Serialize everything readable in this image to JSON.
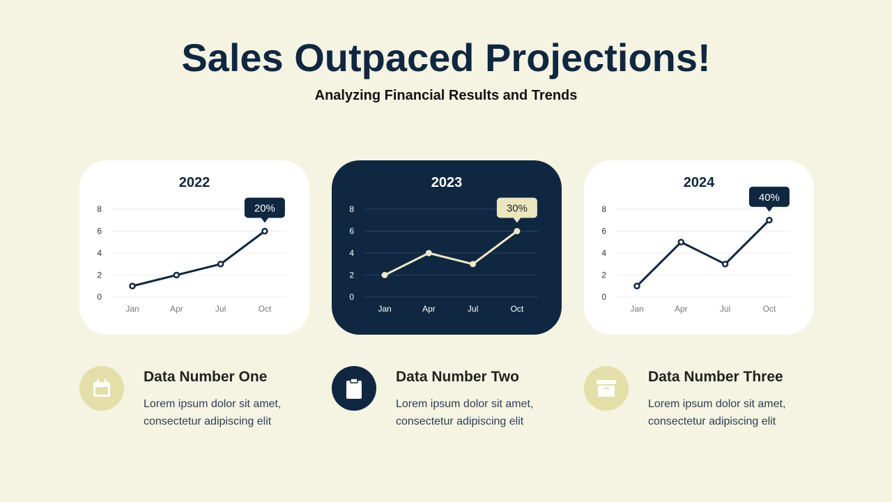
{
  "header": {
    "title": "Sales Outpaced Projections!",
    "subtitle": "Analyzing Financial Results and Trends"
  },
  "colors": {
    "bg": "#f5f4e2",
    "navy": "#0f2741",
    "beige": "#e4dfa8",
    "cream": "#efe9c4"
  },
  "chart_data": [
    {
      "type": "line",
      "title": "2022",
      "categories": [
        "Jan",
        "Apr",
        "Jul",
        "Oct"
      ],
      "values": [
        1,
        2,
        3,
        6
      ],
      "yticks": [
        0,
        2,
        4,
        6,
        8
      ],
      "ylim": [
        0,
        8
      ],
      "annotation": "20%",
      "theme": "light"
    },
    {
      "type": "line",
      "title": "2023",
      "categories": [
        "Jan",
        "Apr",
        "Jul",
        "Oct"
      ],
      "values": [
        2,
        4,
        3,
        6
      ],
      "yticks": [
        0,
        2,
        4,
        6,
        8
      ],
      "ylim": [
        0,
        8
      ],
      "annotation": "30%",
      "theme": "dark"
    },
    {
      "type": "line",
      "title": "2024",
      "categories": [
        "Jan",
        "Apr",
        "Jul",
        "Oct"
      ],
      "values": [
        1,
        5,
        3,
        7
      ],
      "yticks": [
        0,
        2,
        4,
        6,
        8
      ],
      "ylim": [
        0,
        8
      ],
      "annotation": "40%",
      "theme": "light"
    }
  ],
  "items": [
    {
      "title": "Data Number One",
      "text": "Lorem ipsum dolor sit amet, consectetur adipiscing elit",
      "icon": "calendar-icon"
    },
    {
      "title": "Data Number Two",
      "text": "Lorem ipsum dolor sit amet, consectetur adipiscing elit",
      "icon": "clipboard-icon"
    },
    {
      "title": "Data Number Three",
      "text": "Lorem ipsum dolor sit amet, consectetur adipiscing elit",
      "icon": "archive-icon"
    }
  ]
}
